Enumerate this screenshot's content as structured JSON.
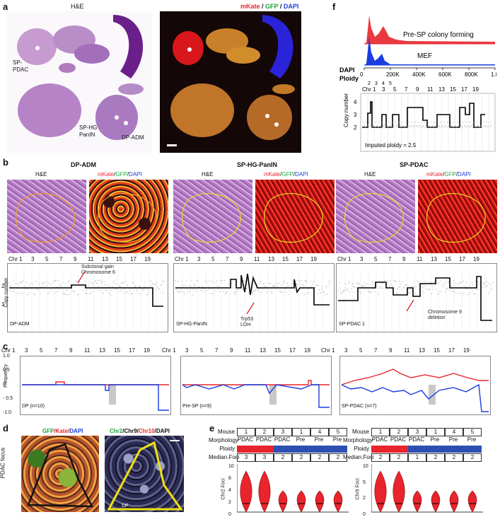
{
  "panel_a": {
    "label": "a",
    "he_title": "H&E",
    "fluor_title_m": "mKate",
    "fluor_title_sep1": " / ",
    "fluor_title_g": "GFP",
    "fluor_title_sep2": " / ",
    "fluor_title_d": "DAPI",
    "sp_pdac": "SP-\nPDAC",
    "sp_hg": "SP-HG\nPanIN",
    "dp_adm": "DP-ADM"
  },
  "panel_b": {
    "label": "b",
    "groups": [
      {
        "title": "DP-ADM",
        "corner": "DP-ADM",
        "note": "Subclonal gain\nChromosome 6"
      },
      {
        "title": "SP-HG-PanIN",
        "corner": "SP-HG-PanIN",
        "note": "Trp53\nLOH"
      },
      {
        "title": "SP-PDAC",
        "corner": "SP-PDAC 1",
        "note": "Chromosome 9\ndeletion"
      }
    ],
    "he": "H&E",
    "mkate": "mKate",
    "gfp": "GFP",
    "dapi": "DAPI",
    "slash": "/",
    "ylabel": "Copy number",
    "yticks": [
      "2",
      "1"
    ]
  },
  "chrom_labels": [
    "Chr 1",
    "3",
    "5",
    "7",
    "9",
    "11",
    "13",
    "15",
    "17",
    "19"
  ],
  "panel_c": {
    "label": "c",
    "ylabel": "Frequency",
    "yticks": [
      "1.0",
      "0.5",
      "0",
      "- 0.5",
      "-1.0"
    ],
    "groups": [
      "DP (n=10)",
      "Pre-SP (n=9)",
      "SP-PDAC (n=7)"
    ]
  },
  "panel_d": {
    "label": "d",
    "left_title_g": "GFP",
    "left_title_k": "/Kate/",
    "left_title_d": "DAPI",
    "right_title_a": "Chr2",
    "right_title_b": "/Chr9/",
    "right_title_c": "Chr10",
    "right_title_d": "/DAPI",
    "side": "PDAC focus",
    "dp": "DP"
  },
  "panel_e": {
    "label": "e",
    "row_labels": [
      "Mouse",
      "Morphology",
      "Ploidy",
      "Median.Foci"
    ],
    "left": {
      "mouse": [
        "1",
        "2",
        "3",
        "1",
        "4",
        "5"
      ],
      "morph": [
        "PDAC",
        "PDAC",
        "PDAC",
        "Pre",
        "Pre",
        "Pre"
      ],
      "ploidy_colors": [
        "#e8242c",
        "#e8242c",
        "#2d4fb4",
        "#2d4fb4",
        "#2d4fb4",
        "#2d4fb4"
      ],
      "foci": [
        "3",
        "3",
        "2",
        "2",
        "2",
        "2"
      ],
      "ylabel": "Chr2 Foci",
      "yticks": [
        "10",
        "6",
        "4",
        "2",
        "0"
      ]
    },
    "right": {
      "mouse": [
        "1",
        "2",
        "3",
        "1",
        "4",
        "5"
      ],
      "morph": [
        "PDAC",
        "PDAC",
        "PDAC",
        "Pre",
        "Pre",
        "Pre"
      ],
      "ploidy_colors": [
        "#e8242c",
        "#e8242c",
        "#2d4fb4",
        "#2d4fb4",
        "#2d4fb4",
        "#2d4fb4"
      ],
      "foci": [
        "2",
        "2",
        "1",
        "2",
        "2",
        "2"
      ],
      "ylabel": "Chr9 Foci",
      "yticks": [
        "10",
        "5",
        "2",
        "0"
      ]
    }
  },
  "panel_f": {
    "label": "f",
    "pre_sp": "Pre-SP colony forming",
    "mef": "MEF",
    "dapi_label": "DAPI",
    "dapi_ticks": [
      "0",
      "200K",
      "400K",
      "600K",
      "800K",
      "1.0M"
    ],
    "ploidy_label": "Ploidy",
    "ploidy_ticks": [
      "2",
      "3",
      "4",
      "5"
    ],
    "ylabel": "Copy number",
    "yticks": [
      "4",
      "3",
      "2"
    ],
    "imputed": "Imputed ploidy = 2.5",
    "colors": {
      "red": "#e8242c",
      "blue": "#1a3de0"
    }
  }
}
